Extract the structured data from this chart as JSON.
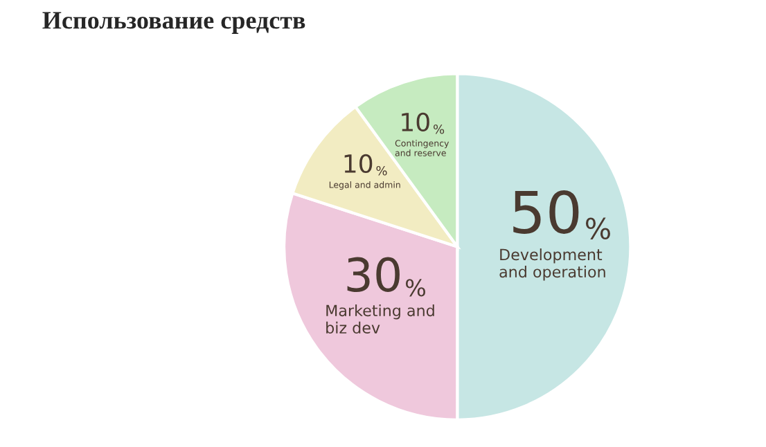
{
  "chart_data": {
    "type": "pie",
    "title": "Использование средств",
    "categories": [
      "Development\nand operation",
      "Marketing and\nbiz dev",
      "Legal and admin",
      "Contingency\nand reserve"
    ],
    "values": [
      50,
      30,
      10,
      10
    ],
    "value_labels": [
      "50%",
      "30%",
      "10%",
      "10%"
    ],
    "colors": [
      "#c6e6e4",
      "#efc8dc",
      "#f2ecc2",
      "#c6ebc0"
    ]
  }
}
